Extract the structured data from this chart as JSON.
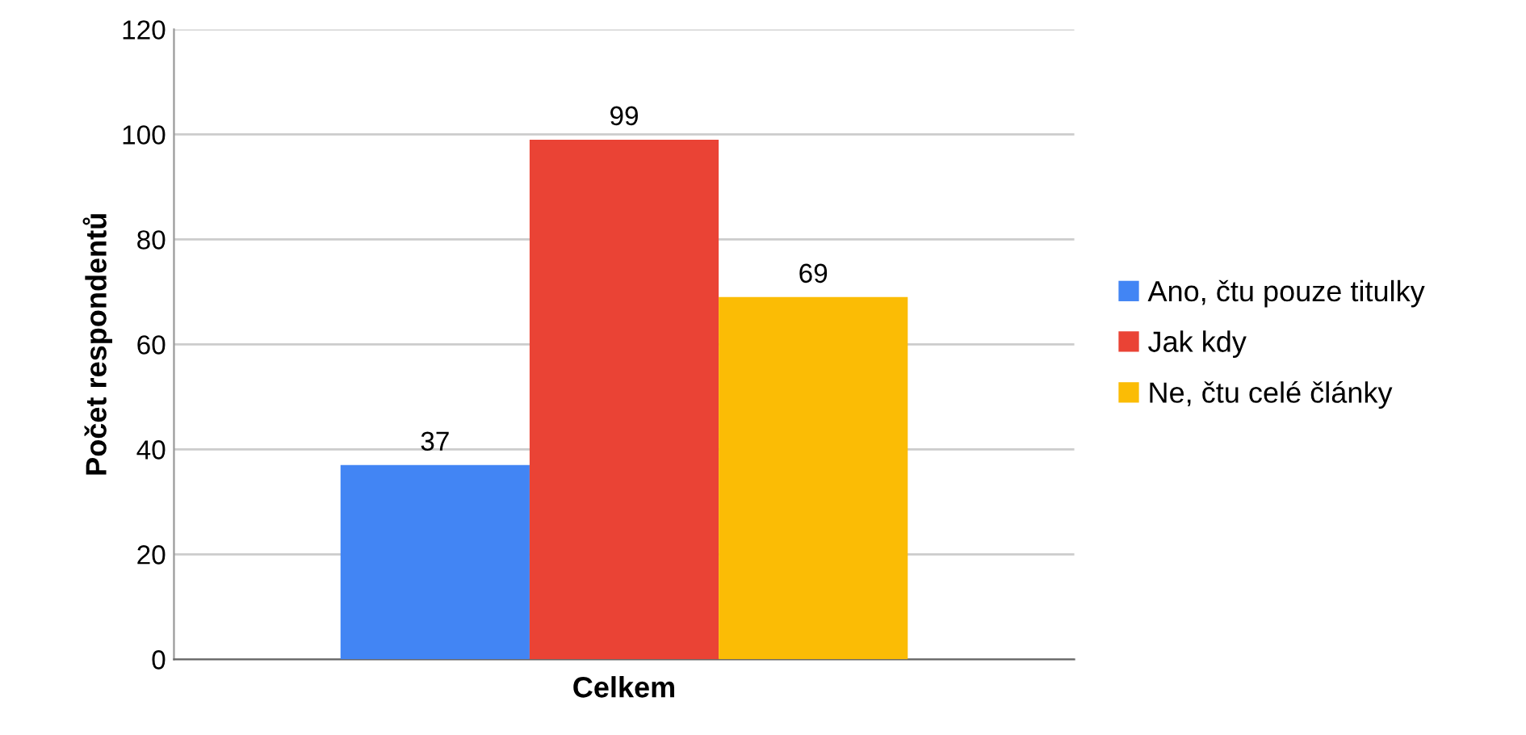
{
  "chart_data": {
    "type": "bar",
    "ylabel": "Počet respondentů",
    "xlabel": "Celkem",
    "categories": [
      null
    ],
    "series": [
      {
        "name": "Ano, čtu pouze titulky",
        "color": "#4285f4",
        "values": [
          37
        ]
      },
      {
        "name": "Jak kdy",
        "color": "#ea4335",
        "values": [
          99
        ]
      },
      {
        "name": "Ne, čtu celé články",
        "color": "#fbbc05",
        "values": [
          69
        ]
      }
    ],
    "ylim": [
      0,
      120
    ],
    "yticks": [
      0,
      20,
      40,
      60,
      80,
      100,
      120
    ],
    "grid": "y",
    "legend": "right",
    "data_labels": true
  }
}
